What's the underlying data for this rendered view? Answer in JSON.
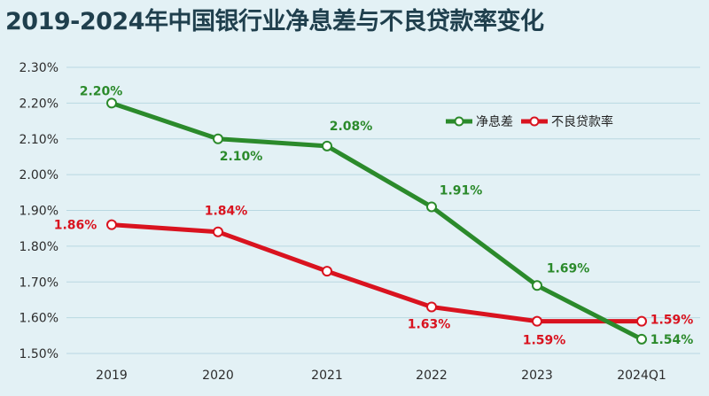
{
  "title": "2019-2024年中国银行业净息差与不良贷款率变化",
  "colors": {
    "nim": "#2b8a2b",
    "npl": "#d9131f",
    "grid": "#b9d8e2",
    "background": "#e3f1f5"
  },
  "chart_data": {
    "type": "line",
    "title": "2019-2024年中国银行业净息差与不良贷款率变化",
    "categories": [
      "2019",
      "2020",
      "2021",
      "2022",
      "2023",
      "2024Q1"
    ],
    "ylim": [
      1.5,
      2.3
    ],
    "yticks": [
      "1.50%",
      "1.60%",
      "1.70%",
      "1.80%",
      "1.90%",
      "2.00%",
      "2.10%",
      "2.20%",
      "2.30%"
    ],
    "grid": "horizontal",
    "legend_position": "top-right",
    "series": [
      {
        "name": "净息差",
        "values": [
          2.2,
          2.1,
          2.08,
          1.91,
          1.69,
          1.54
        ],
        "labels": [
          "2.20%",
          "2.10%",
          "2.08%",
          "1.91%",
          "1.69%",
          "1.54%"
        ]
      },
      {
        "name": "不良贷款率",
        "values": [
          1.86,
          1.84,
          1.73,
          1.63,
          1.59,
          1.59
        ],
        "labels": [
          "1.86%",
          "1.84%",
          "",
          "1.63%",
          "1.59%",
          "1.59%"
        ]
      }
    ]
  }
}
